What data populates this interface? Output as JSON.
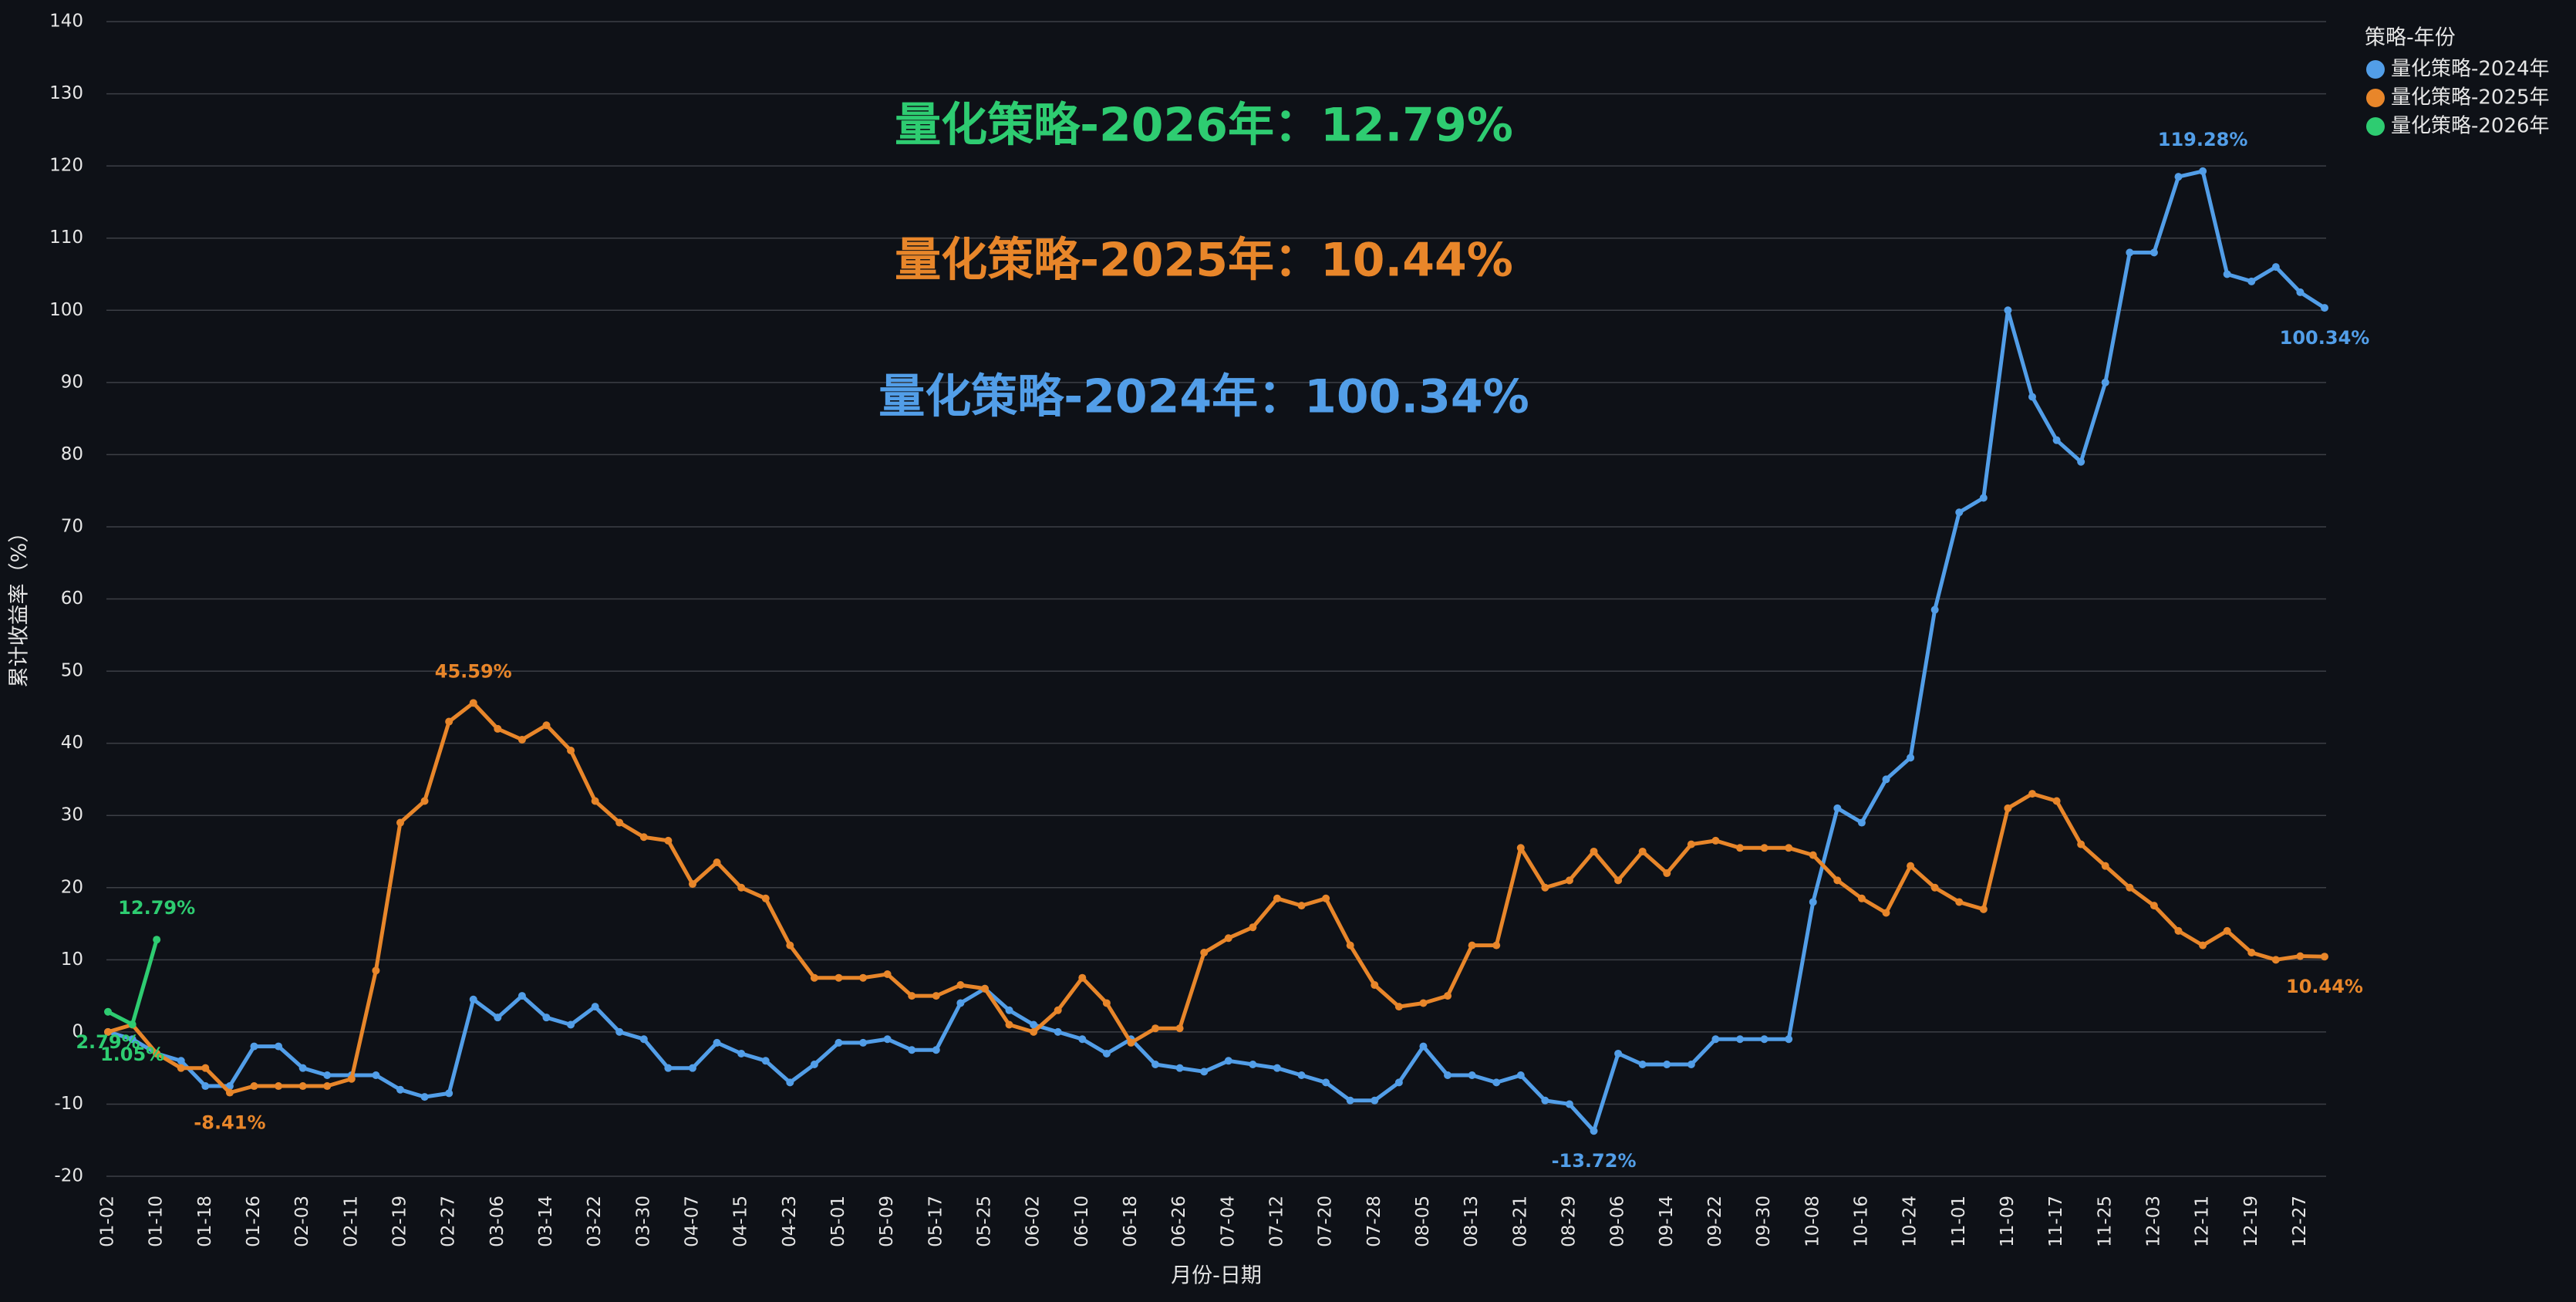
{
  "chart_data": {
    "type": "line",
    "x_label": "月份-日期",
    "y_label": "累计收益率（%）",
    "legend_title": "策略-年份",
    "legend_position": "top-right",
    "grid": true,
    "annotations": [
      {
        "text": "量化策略-2026年：12.79%",
        "color": "#2ecc71"
      },
      {
        "text": "量化策略-2025年：10.44%",
        "color": "#e8862a"
      },
      {
        "text": "量化策略-2024年：100.34%",
        "color": "#529ee8"
      }
    ],
    "categories": [
      "01-02",
      null,
      "01-10",
      null,
      "01-18",
      null,
      "01-26",
      null,
      "02-03",
      null,
      "02-11",
      null,
      "02-19",
      null,
      "02-27",
      null,
      "03-06",
      null,
      "03-14",
      null,
      "03-22",
      null,
      "03-30",
      null,
      "04-07",
      null,
      "04-15",
      null,
      "04-23",
      null,
      "05-01",
      null,
      "05-09",
      null,
      "05-17",
      null,
      "05-25",
      null,
      "06-02",
      null,
      "06-10",
      null,
      "06-18",
      null,
      "06-26",
      null,
      "07-04",
      null,
      "07-12",
      null,
      "07-20",
      null,
      "07-28",
      null,
      "08-05",
      null,
      "08-13",
      null,
      "08-21",
      null,
      "08-29",
      null,
      "09-06",
      null,
      "09-14",
      null,
      "09-22",
      null,
      "09-30",
      null,
      "10-08",
      null,
      "10-16",
      null,
      "10-24",
      null,
      "11-01",
      null,
      "11-09",
      null,
      "11-17",
      null,
      "11-25",
      null,
      "12-03",
      null,
      "12-11",
      null,
      "12-19",
      null,
      "12-27",
      null
    ],
    "ylim": [
      -20,
      140
    ],
    "yticks": [
      -20,
      -10,
      0,
      10,
      20,
      30,
      40,
      50,
      60,
      70,
      80,
      90,
      100,
      110,
      120,
      130,
      140
    ],
    "series": [
      {
        "name": "量化策略-2024年",
        "color": "#529ee8",
        "values": [
          0,
          -1,
          -3,
          -4,
          -7.5,
          -7.5,
          -2,
          -2,
          -5,
          -6,
          -6,
          -6,
          -8,
          -9,
          -8.5,
          4.5,
          2,
          5,
          2,
          1,
          3.5,
          0,
          -1,
          -5,
          -5,
          -1.5,
          -3,
          -4,
          -7,
          -4.5,
          -1.5,
          -1.5,
          -1,
          -2.5,
          -2.5,
          4,
          6,
          3,
          1,
          0,
          -1,
          -3,
          -1,
          -4.5,
          -5,
          -5.5,
          -4,
          -4.5,
          -5,
          -6,
          -7,
          -9.5,
          -9.5,
          -7,
          -2,
          -6,
          -6,
          -7,
          -6,
          -9.5,
          -10,
          -13.72,
          -3,
          -4.5,
          -4.5,
          -4.5,
          -1,
          -1,
          -1,
          -1,
          18,
          31,
          29,
          35,
          38,
          58.5,
          72,
          74,
          100,
          88,
          82,
          79,
          90,
          108,
          108,
          118.5,
          119.28,
          105,
          104,
          106,
          102.5,
          100.34
        ],
        "value_labels": [
          null,
          null,
          null,
          null,
          null,
          null,
          null,
          null,
          null,
          null,
          null,
          null,
          null,
          null,
          null,
          null,
          null,
          null,
          null,
          null,
          null,
          null,
          null,
          null,
          null,
          null,
          null,
          null,
          null,
          null,
          null,
          null,
          null,
          null,
          null,
          null,
          null,
          null,
          null,
          null,
          null,
          null,
          null,
          null,
          null,
          null,
          null,
          null,
          null,
          null,
          null,
          null,
          null,
          null,
          null,
          null,
          null,
          null,
          null,
          null,
          null,
          "-13.72%",
          null,
          null,
          null,
          null,
          null,
          null,
          null,
          null,
          null,
          null,
          null,
          null,
          null,
          null,
          null,
          null,
          null,
          null,
          null,
          null,
          null,
          null,
          null,
          null,
          "119.28%",
          null,
          null,
          null,
          null,
          "100.34%"
        ]
      },
      {
        "name": "量化策略-2025年",
        "color": "#e8862a",
        "values": [
          0,
          1,
          -3,
          -5,
          -5,
          -8.41,
          -7.5,
          -7.5,
          -7.5,
          -7.5,
          -6.5,
          8.5,
          29,
          32,
          43,
          45.59,
          42,
          40.5,
          42.5,
          39,
          32,
          29,
          27,
          26.5,
          20.5,
          23.5,
          20,
          18.5,
          12,
          7.5,
          7.5,
          7.5,
          8,
          5,
          5,
          6.5,
          6,
          1,
          0,
          3,
          7.5,
          4,
          -1.5,
          0.5,
          0.5,
          11,
          13,
          14.5,
          18.5,
          17.5,
          18.5,
          12,
          6.5,
          3.5,
          4,
          5,
          12,
          12,
          25.5,
          20,
          21,
          25,
          21,
          25,
          22,
          26,
          26.5,
          25.5,
          25.5,
          25.5,
          24.5,
          21,
          18.5,
          16.5,
          23,
          20,
          18,
          17,
          31,
          33,
          32,
          26,
          23,
          20,
          17.5,
          14,
          12,
          14,
          11,
          10,
          10.5,
          10.44
        ],
        "value_labels": [
          null,
          null,
          null,
          null,
          null,
          "-8.41%",
          null,
          null,
          null,
          null,
          null,
          null,
          null,
          null,
          null,
          "45.59%",
          null,
          null,
          null,
          null,
          null,
          null,
          null,
          null,
          null,
          null,
          null,
          null,
          null,
          null,
          null,
          null,
          null,
          null,
          null,
          null,
          null,
          null,
          null,
          null,
          null,
          null,
          null,
          null,
          null,
          null,
          null,
          null,
          null,
          null,
          null,
          null,
          null,
          null,
          null,
          null,
          null,
          null,
          null,
          null,
          null,
          null,
          null,
          null,
          null,
          null,
          null,
          null,
          null,
          null,
          null,
          null,
          null,
          null,
          null,
          null,
          null,
          null,
          null,
          null,
          null,
          null,
          null,
          null,
          null,
          null,
          null,
          null,
          null,
          null,
          null,
          "10.44%"
        ]
      },
      {
        "name": "量化策略-2026年",
        "color": "#2ecc71",
        "values": [
          2.79,
          1.05,
          12.79,
          null,
          null,
          null,
          null,
          null,
          null,
          null,
          null,
          null,
          null,
          null,
          null,
          null,
          null,
          null,
          null,
          null,
          null,
          null,
          null,
          null,
          null,
          null,
          null,
          null,
          null,
          null,
          null,
          null,
          null,
          null,
          null,
          null,
          null,
          null,
          null,
          null,
          null,
          null,
          null,
          null,
          null,
          null,
          null,
          null,
          null,
          null,
          null,
          null,
          null,
          null,
          null,
          null,
          null,
          null,
          null,
          null,
          null,
          null,
          null,
          null,
          null,
          null,
          null,
          null,
          null,
          null,
          null,
          null,
          null,
          null,
          null,
          null,
          null,
          null,
          null,
          null,
          null,
          null,
          null,
          null,
          null,
          null,
          null,
          null,
          null,
          null,
          null,
          null
        ],
        "value_labels": [
          "2.79%",
          "1.05%",
          "12.79%",
          null,
          null,
          null,
          null,
          null,
          null,
          null,
          null,
          null,
          null,
          null,
          null,
          null,
          null,
          null,
          null,
          null,
          null,
          null,
          null,
          null,
          null,
          null,
          null,
          null,
          null,
          null,
          null,
          null,
          null,
          null,
          null,
          null,
          null,
          null,
          null,
          null,
          null,
          null,
          null,
          null,
          null,
          null,
          null,
          null,
          null,
          null,
          null,
          null,
          null,
          null,
          null,
          null,
          null,
          null,
          null,
          null,
          null,
          null,
          null,
          null,
          null,
          null,
          null,
          null,
          null,
          null,
          null,
          null,
          null,
          null,
          null,
          null,
          null,
          null,
          null,
          null,
          null,
          null,
          null,
          null,
          null,
          null,
          null,
          null,
          null,
          null,
          null,
          null
        ]
      }
    ]
  }
}
